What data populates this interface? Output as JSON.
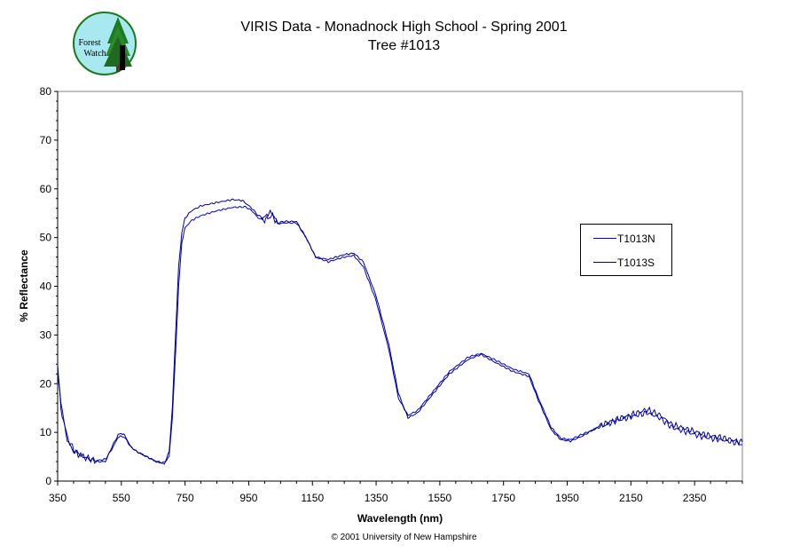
{
  "title": {
    "line1": "VIRIS Data - Monadnock High School - Spring 2001",
    "line2": "Tree #1013"
  },
  "footer": "© 2001 University of New Hampshire",
  "logo": {
    "text_line1": "Forest",
    "text_line2": "Watch",
    "icon": "forest-watch-logo"
  },
  "chart_data": {
    "type": "line",
    "xlabel": "Wavelength (nm)",
    "ylabel": "% Reflectance",
    "xlim": [
      350,
      2500
    ],
    "ylim": [
      0,
      80
    ],
    "xticks": [
      350,
      550,
      750,
      950,
      1150,
      1350,
      1550,
      1750,
      1950,
      2150,
      2350
    ],
    "yticks": [
      0,
      10,
      20,
      30,
      40,
      50,
      60,
      70,
      80
    ],
    "legend_position": "right",
    "grid": false,
    "series": [
      {
        "name": "T1013N",
        "color": "#0000cc",
        "points": [
          [
            350,
            23
          ],
          [
            360,
            16
          ],
          [
            380,
            9
          ],
          [
            400,
            6.5
          ],
          [
            430,
            5
          ],
          [
            470,
            4.2
          ],
          [
            500,
            4.5
          ],
          [
            520,
            6.5
          ],
          [
            540,
            9
          ],
          [
            550,
            9.2
          ],
          [
            560,
            9
          ],
          [
            580,
            7
          ],
          [
            600,
            6
          ],
          [
            630,
            5
          ],
          [
            660,
            4
          ],
          [
            685,
            3.8
          ],
          [
            700,
            5
          ],
          [
            710,
            13
          ],
          [
            720,
            26
          ],
          [
            730,
            40
          ],
          [
            740,
            49
          ],
          [
            750,
            52
          ],
          [
            770,
            53.5
          ],
          [
            800,
            54.5
          ],
          [
            850,
            55.5
          ],
          [
            900,
            56.2
          ],
          [
            940,
            56.3
          ],
          [
            960,
            55.5
          ],
          [
            980,
            54
          ],
          [
            1000,
            53.5
          ],
          [
            1010,
            54
          ],
          [
            1025,
            54.5
          ],
          [
            1040,
            52.8
          ],
          [
            1060,
            53
          ],
          [
            1100,
            53
          ],
          [
            1130,
            50
          ],
          [
            1160,
            46
          ],
          [
            1200,
            45
          ],
          [
            1250,
            46
          ],
          [
            1280,
            46.3
          ],
          [
            1310,
            44
          ],
          [
            1350,
            37
          ],
          [
            1390,
            27
          ],
          [
            1420,
            17
          ],
          [
            1450,
            13.5
          ],
          [
            1480,
            14.5
          ],
          [
            1530,
            18.5
          ],
          [
            1580,
            22.5
          ],
          [
            1640,
            25.5
          ],
          [
            1680,
            26.2
          ],
          [
            1720,
            25
          ],
          [
            1780,
            23
          ],
          [
            1830,
            22
          ],
          [
            1860,
            17
          ],
          [
            1900,
            11
          ],
          [
            1930,
            8.8
          ],
          [
            1960,
            8.5
          ],
          [
            2000,
            9.7
          ],
          [
            2050,
            11
          ],
          [
            2100,
            12.3
          ],
          [
            2150,
            13.2
          ],
          [
            2200,
            14
          ],
          [
            2240,
            13
          ],
          [
            2280,
            11
          ],
          [
            2330,
            10
          ],
          [
            2380,
            9
          ],
          [
            2430,
            8.5
          ],
          [
            2470,
            8
          ],
          [
            2500,
            7.5
          ]
        ]
      },
      {
        "name": "T1013S",
        "color": "#00008b",
        "points": [
          [
            350,
            24
          ],
          [
            360,
            15
          ],
          [
            380,
            8.5
          ],
          [
            400,
            6
          ],
          [
            430,
            5
          ],
          [
            470,
            4
          ],
          [
            500,
            4
          ],
          [
            520,
            7
          ],
          [
            540,
            9.5
          ],
          [
            550,
            9.8
          ],
          [
            560,
            9.5
          ],
          [
            580,
            7
          ],
          [
            600,
            6
          ],
          [
            630,
            5
          ],
          [
            660,
            4
          ],
          [
            685,
            3.5
          ],
          [
            700,
            6
          ],
          [
            710,
            15
          ],
          [
            720,
            30
          ],
          [
            730,
            44
          ],
          [
            740,
            51
          ],
          [
            750,
            54
          ],
          [
            770,
            55.5
          ],
          [
            800,
            56.5
          ],
          [
            850,
            57.2
          ],
          [
            900,
            57.8
          ],
          [
            930,
            57.6
          ],
          [
            960,
            56
          ],
          [
            980,
            54.5
          ],
          [
            1000,
            54
          ],
          [
            1010,
            55
          ],
          [
            1025,
            55
          ],
          [
            1040,
            53
          ],
          [
            1060,
            53.3
          ],
          [
            1100,
            53.3
          ],
          [
            1130,
            50
          ],
          [
            1160,
            46
          ],
          [
            1200,
            45.5
          ],
          [
            1250,
            46.5
          ],
          [
            1280,
            46.8
          ],
          [
            1310,
            45
          ],
          [
            1350,
            38
          ],
          [
            1390,
            28
          ],
          [
            1420,
            18
          ],
          [
            1450,
            13
          ],
          [
            1480,
            14
          ],
          [
            1530,
            18
          ],
          [
            1580,
            22
          ],
          [
            1640,
            25
          ],
          [
            1680,
            26
          ],
          [
            1720,
            24.5
          ],
          [
            1780,
            22.5
          ],
          [
            1830,
            21.5
          ],
          [
            1860,
            16.5
          ],
          [
            1900,
            10.5
          ],
          [
            1930,
            8.5
          ],
          [
            1960,
            8.2
          ],
          [
            2000,
            9.3
          ],
          [
            2050,
            11.3
          ],
          [
            2100,
            12.6
          ],
          [
            2150,
            13.6
          ],
          [
            2200,
            14.7
          ],
          [
            2240,
            13.6
          ],
          [
            2280,
            11.6
          ],
          [
            2330,
            10.6
          ],
          [
            2380,
            9.6
          ],
          [
            2430,
            9
          ],
          [
            2470,
            8.4
          ],
          [
            2500,
            8
          ]
        ]
      }
    ]
  }
}
